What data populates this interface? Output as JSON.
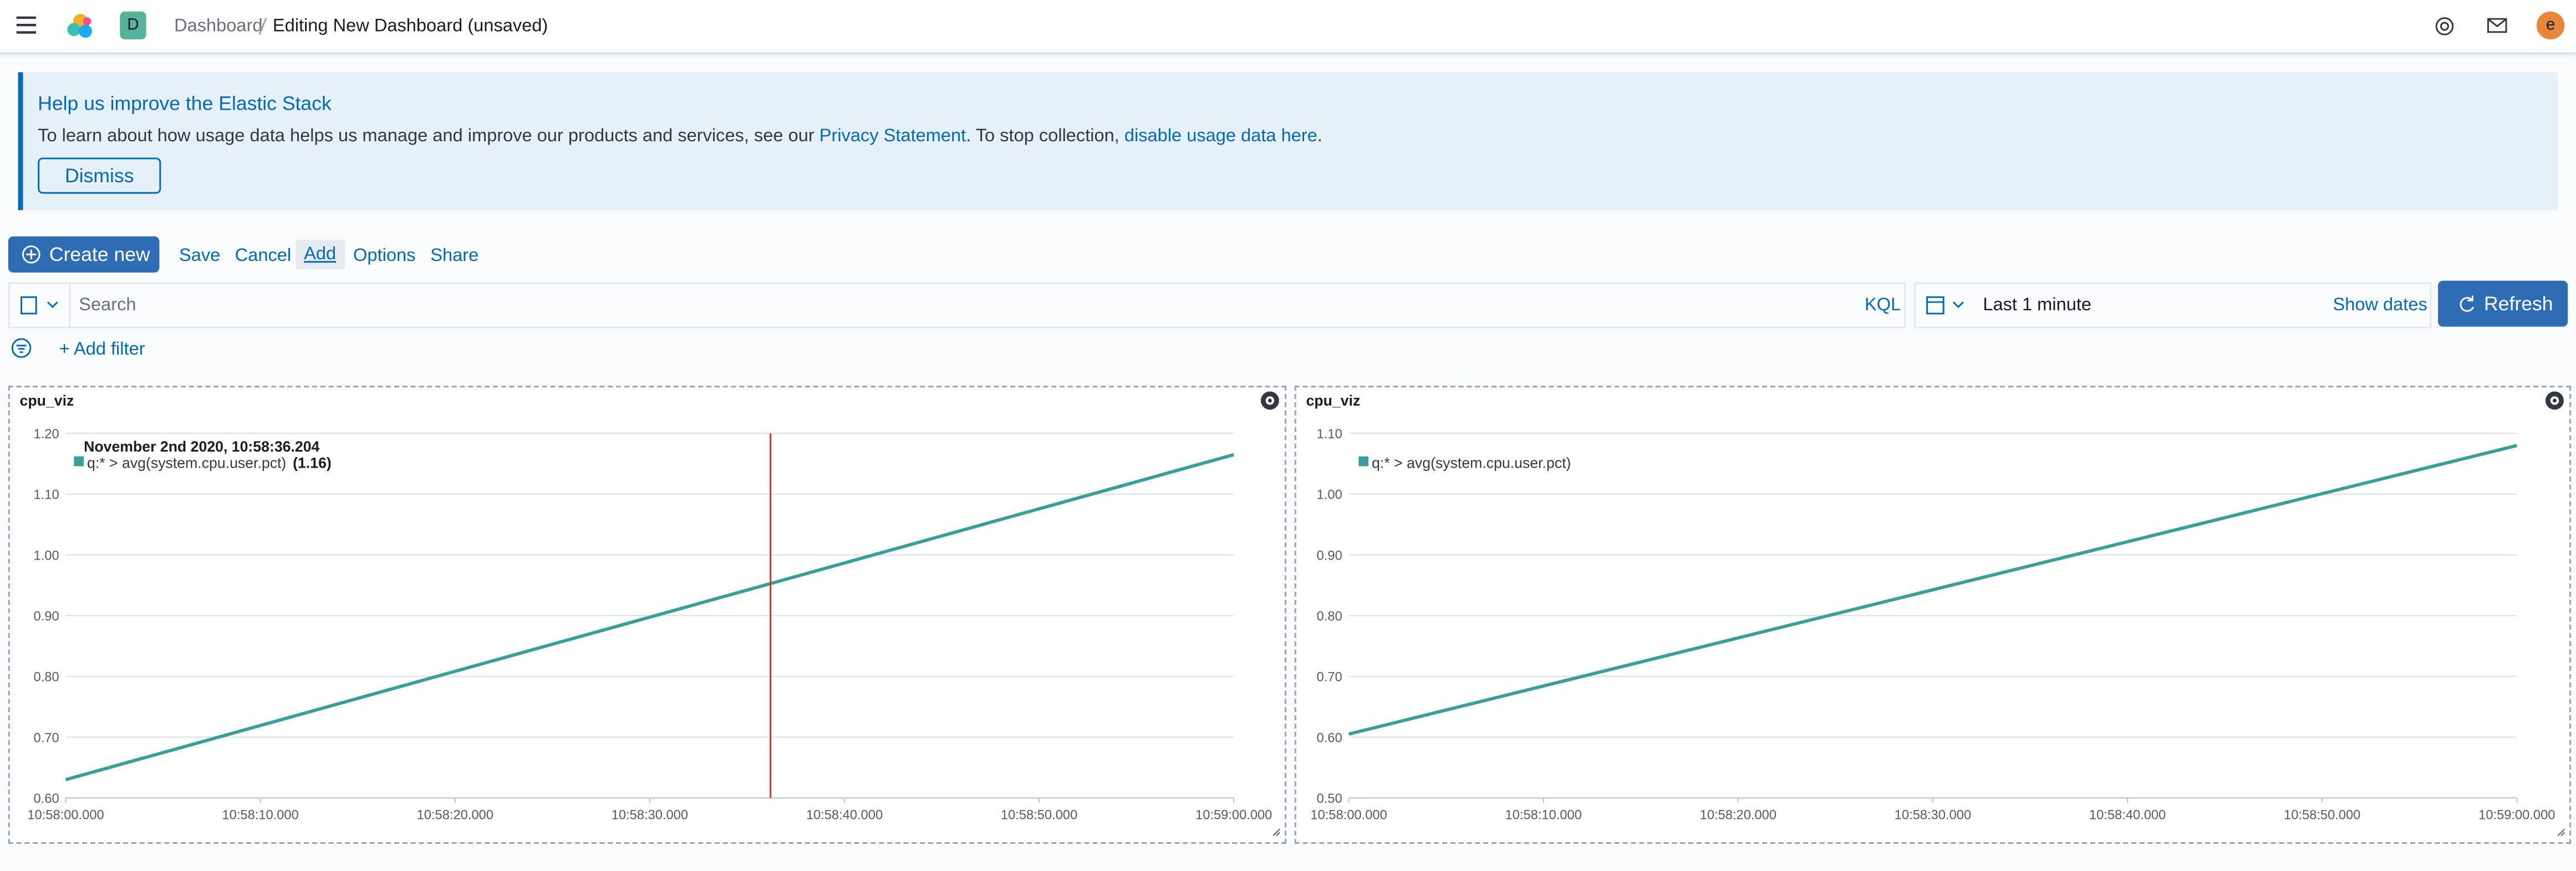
{
  "nav": {
    "badge": "D",
    "breadcrumbs": [
      "Dashboard",
      "Editing New Dashboard (unsaved)"
    ],
    "avatar": "e"
  },
  "callout": {
    "title": "Help us improve the Elastic Stack",
    "text_parts": [
      "To learn about how usage data helps us manage and improve our products and services, see our ",
      "Privacy Statement",
      ". To stop collection, ",
      "disable usage data here",
      "."
    ],
    "button": "Dismiss"
  },
  "toolbar": {
    "create": "Create new",
    "links": [
      "Save",
      "Cancel",
      "Add",
      "Options",
      "Share"
    ]
  },
  "query": {
    "placeholder": "Search",
    "language": "KQL",
    "time": "Last 1 minute",
    "show_dates": "Show dates",
    "refresh": "Refresh"
  },
  "filter": {
    "add": "+ Add filter"
  },
  "panels": [
    {
      "title": "cpu_viz",
      "chart_data": {
        "type": "line",
        "x": [
          0,
          60
        ],
        "series": [
          {
            "name": "q:* > avg(system.cpu.user.pct)",
            "color": "#3a9e9b",
            "values": [
              0.63,
              1.165
            ]
          }
        ],
        "xlim": [
          0,
          60
        ],
        "ylim": [
          0.6,
          1.2
        ],
        "grid": true,
        "xticks": [
          {
            "value": 0,
            "label": "10:58:00.000"
          },
          {
            "value": 10,
            "label": "10:58:10.000"
          },
          {
            "value": 20,
            "label": "10:58:20.000"
          },
          {
            "value": 30,
            "label": "10:58:30.000"
          },
          {
            "value": 40,
            "label": "10:58:40.000"
          },
          {
            "value": 50,
            "label": "10:58:50.000"
          },
          {
            "value": 60,
            "label": "10:59:00.000"
          }
        ],
        "yticks": [
          {
            "value": 0.6,
            "label": "0.60"
          },
          {
            "value": 0.7,
            "label": "0.70"
          },
          {
            "value": 0.8,
            "label": "0.80"
          },
          {
            "value": 0.9,
            "label": "0.90"
          },
          {
            "value": 1.0,
            "label": "1.00"
          },
          {
            "value": 1.1,
            "label": "1.10"
          },
          {
            "value": 1.2,
            "label": "1.20"
          }
        ],
        "crosshair_x": 36.204,
        "crosshair_color": "#c0392b",
        "tooltip": {
          "title": "November 2nd 2020, 10:58:36.204",
          "value_text": "(1.16)"
        }
      }
    },
    {
      "title": "cpu_viz",
      "chart_data": {
        "type": "line",
        "x": [
          0,
          60
        ],
        "series": [
          {
            "name": "q:* > avg(system.cpu.user.pct)",
            "color": "#3a9e9b",
            "values": [
              0.605,
              1.08
            ]
          }
        ],
        "xlim": [
          0,
          60
        ],
        "ylim": [
          0.5,
          1.1
        ],
        "grid": true,
        "xticks": [
          {
            "value": 0,
            "label": "10:58:00.000"
          },
          {
            "value": 10,
            "label": "10:58:10.000"
          },
          {
            "value": 20,
            "label": "10:58:20.000"
          },
          {
            "value": 30,
            "label": "10:58:30.000"
          },
          {
            "value": 40,
            "label": "10:58:40.000"
          },
          {
            "value": 50,
            "label": "10:58:50.000"
          },
          {
            "value": 60,
            "label": "10:59:00.000"
          }
        ],
        "yticks": [
          {
            "value": 0.5,
            "label": "0.50"
          },
          {
            "value": 0.6,
            "label": "0.60"
          },
          {
            "value": 0.7,
            "label": "0.70"
          },
          {
            "value": 0.8,
            "label": "0.80"
          },
          {
            "value": 0.9,
            "label": "0.90"
          },
          {
            "value": 1.0,
            "label": "1.00"
          },
          {
            "value": 1.1,
            "label": "1.10"
          }
        ]
      }
    }
  ]
}
